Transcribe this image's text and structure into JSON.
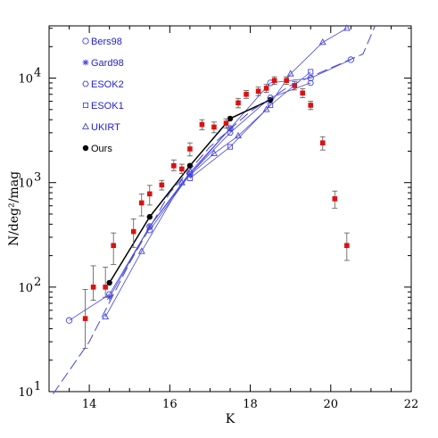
{
  "chart_data": {
    "type": "scatter",
    "xlabel": "K",
    "ylabel": "N/deg²/mag",
    "xlim": [
      13,
      22
    ],
    "ylim": [
      10,
      31623
    ],
    "yscale": "log",
    "x_ticks": [
      14,
      16,
      18,
      20,
      22
    ],
    "y_ticks": [
      {
        "value": 10,
        "label": "10",
        "exp": "1"
      },
      {
        "value": 100,
        "label": "10",
        "exp": "2"
      },
      {
        "value": 1000,
        "label": "10",
        "exp": "3"
      },
      {
        "value": 10000,
        "label": "10",
        "exp": "4"
      }
    ],
    "legend_position": "top-left",
    "colors": {
      "survey": "#4444dd",
      "data": "#dd1111",
      "ours": "#000000",
      "errorbar": "#555555"
    },
    "series": [
      {
        "name": "Bers98",
        "marker": "circle",
        "x": [
          13.5,
          14.5,
          15.5,
          16.5,
          17.5,
          18.5,
          19.5,
          20.5
        ],
        "y": [
          48,
          85,
          380,
          1250,
          3300,
          9000,
          10000,
          15000
        ]
      },
      {
        "name": "Gard98",
        "marker": "star",
        "x": [
          14.5,
          15.5,
          16.5,
          17.5
        ],
        "y": [
          80,
          380,
          1200,
          3300
        ]
      },
      {
        "name": "ESOK2",
        "marker": "hexagon",
        "x": [
          15.5,
          16.5,
          17.5,
          18.5,
          19.5
        ],
        "y": [
          350,
          1200,
          3000,
          6500,
          9000
        ]
      },
      {
        "name": "ESOK1",
        "marker": "square",
        "x": [
          16.5,
          17.5,
          18.5,
          19.5
        ],
        "y": [
          1100,
          2200,
          5500,
          11500
        ]
      },
      {
        "name": "UKIRT",
        "marker": "triangle",
        "x": [
          14.4,
          15.3,
          16.3,
          17.1,
          17.7,
          18.4,
          19.0,
          19.8,
          20.4
        ],
        "y": [
          52,
          220,
          1000,
          1900,
          2800,
          5000,
          11000,
          22000,
          30000
        ]
      },
      {
        "name": "Ours",
        "marker": "filled-circle",
        "x": [
          14.5,
          15.5,
          16.5,
          17.5,
          18.5
        ],
        "y": [
          110,
          470,
          1450,
          4100,
          6200
        ]
      },
      {
        "name": "",
        "marker": "filled-square",
        "x": [
          13.9,
          14.1,
          14.4,
          14.6,
          15.1,
          15.3,
          15.5,
          15.8,
          16.1,
          16.3,
          16.5,
          16.8,
          17.1,
          17.4,
          17.7,
          17.9,
          18.2,
          18.4,
          18.6,
          18.9,
          19.1,
          19.3,
          19.5,
          19.8,
          20.1,
          20.4
        ],
        "y": [
          50,
          100,
          100,
          250,
          340,
          640,
          780,
          950,
          1450,
          1350,
          2100,
          3600,
          3400,
          3700,
          5800,
          7000,
          7500,
          8000,
          9500,
          9500,
          8500,
          7200,
          5500,
          2400,
          700,
          250
        ],
        "err_low": [
          24,
          25,
          20,
          85,
          100,
          160,
          170,
          100,
          150,
          130,
          300,
          400,
          400,
          380,
          600,
          600,
          700,
          700,
          800,
          800,
          800,
          700,
          500,
          350,
          130,
          70
        ],
        "err_high": [
          45,
          60,
          55,
          80,
          110,
          140,
          160,
          100,
          200,
          150,
          300,
          400,
          400,
          380,
          600,
          600,
          700,
          700,
          800,
          800,
          800,
          700,
          500,
          350,
          130,
          80
        ]
      },
      {
        "name": "",
        "marker": "dashed-line",
        "x": [
          13.1,
          14.0,
          15.0,
          16.0,
          17.0,
          18.0,
          19.0,
          20.0,
          20.8,
          21.1
        ],
        "y": [
          9.5,
          30,
          170,
          800,
          2200,
          4800,
          8500,
          12500,
          17000,
          31623
        ]
      }
    ]
  }
}
